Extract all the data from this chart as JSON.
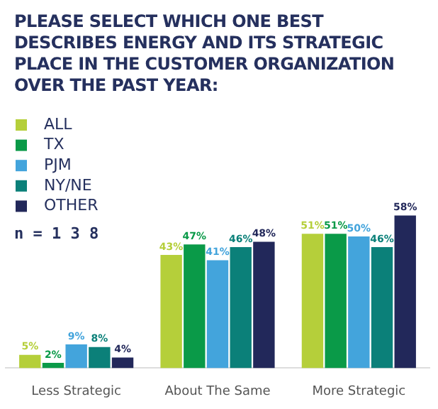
{
  "chart_data": {
    "type": "bar",
    "title": "PLEASE SELECT WHICH ONE BEST DESCRIBES ENERGY AND ITS STRATEGIC PLACE IN THE CUSTOMER ORGANIZATION OVER THE PAST YEAR:",
    "annotations": [
      "n = 1 3 8"
    ],
    "categories": [
      "Less Strategic",
      "About The Same",
      "More Strategic"
    ],
    "series": [
      {
        "name": "ALL",
        "color": "#b5cf3a",
        "values": [
          5,
          43,
          51
        ],
        "value_labels": [
          "5%",
          "43%",
          "51%"
        ]
      },
      {
        "name": "TX",
        "color": "#0a9a48",
        "values": [
          2,
          47,
          51
        ],
        "value_labels": [
          "2%",
          "47%",
          "51%"
        ]
      },
      {
        "name": "PJM",
        "color": "#43a4dc",
        "values": [
          9,
          41,
          50
        ],
        "value_labels": [
          "9%",
          "41%",
          "50%"
        ]
      },
      {
        "name": "NY/NE",
        "color": "#0b8079",
        "values": [
          8,
          46,
          46
        ],
        "value_labels": [
          "8%",
          "46%",
          "46%"
        ]
      },
      {
        "name": "OTHER",
        "color": "#22285a",
        "values": [
          4,
          48,
          58
        ],
        "value_labels": [
          "4%",
          "48%",
          "58%"
        ]
      }
    ],
    "legend": "top left"
  }
}
